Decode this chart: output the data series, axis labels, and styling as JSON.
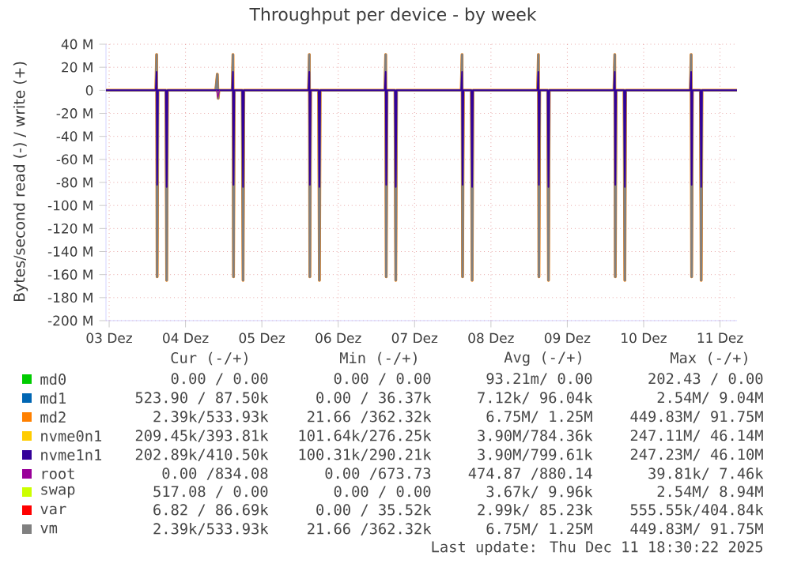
{
  "chart_data": {
    "type": "line",
    "title": "Throughput per device - by week",
    "ylabel": "Bytes/second read (-) / write (+)",
    "x": [
      "2025-12-03T11:00",
      "2025-12-04T02:40",
      "2025-12-04T02:55",
      "2025-12-04T03:05",
      "2025-12-04T03:20",
      "2025-12-04T05:50",
      "2025-12-04T06:05",
      "2025-12-04T06:20",
      "2025-12-04T21:30",
      "2025-12-04T22:00",
      "2025-12-04T22:15",
      "2025-12-04T22:30",
      "2025-12-05T02:40",
      "2025-12-05T02:55",
      "2025-12-05T03:05",
      "2025-12-05T03:20",
      "2025-12-05T05:50",
      "2025-12-05T06:05",
      "2025-12-05T06:20",
      "2025-12-06T02:40",
      "2025-12-06T02:55",
      "2025-12-06T03:05",
      "2025-12-06T03:20",
      "2025-12-06T05:50",
      "2025-12-06T06:05",
      "2025-12-06T06:20",
      "2025-12-07T02:40",
      "2025-12-07T02:55",
      "2025-12-07T03:05",
      "2025-12-07T03:20",
      "2025-12-07T05:50",
      "2025-12-07T06:05",
      "2025-12-07T06:20",
      "2025-12-08T02:40",
      "2025-12-08T02:55",
      "2025-12-08T03:05",
      "2025-12-08T03:20",
      "2025-12-08T05:50",
      "2025-12-08T06:05",
      "2025-12-08T06:20",
      "2025-12-09T02:40",
      "2025-12-09T02:55",
      "2025-12-09T03:05",
      "2025-12-09T03:20",
      "2025-12-09T05:50",
      "2025-12-09T06:05",
      "2025-12-09T06:20",
      "2025-12-10T02:40",
      "2025-12-10T02:55",
      "2025-12-10T03:05",
      "2025-12-10T03:20",
      "2025-12-10T05:50",
      "2025-12-10T06:05",
      "2025-12-10T06:20",
      "2025-12-11T02:40",
      "2025-12-11T02:55",
      "2025-12-11T03:05",
      "2025-12-11T03:20",
      "2025-12-11T05:50",
      "2025-12-11T06:05",
      "2025-12-11T06:20",
      "2025-12-11T17:20"
    ],
    "series": [
      {
        "name": "md0",
        "color": "#00cc00",
        "values": [
          null,
          null,
          null,
          null,
          null,
          null,
          null,
          null,
          null,
          null,
          null,
          null,
          null,
          null,
          null,
          null,
          null,
          null,
          null,
          null,
          null,
          null,
          null,
          null,
          null,
          null,
          null,
          null,
          null,
          null,
          null,
          null,
          null,
          null,
          null,
          null,
          null,
          null,
          null,
          null,
          null,
          null,
          null,
          null,
          null,
          null,
          null,
          null,
          null,
          null,
          null,
          null,
          null,
          null,
          null,
          null,
          null,
          null,
          null,
          null,
          null,
          null
        ]
      },
      {
        "name": "md1",
        "color": "#0066b3",
        "values": [
          null,
          null,
          null,
          null,
          null,
          null,
          null,
          null,
          null,
          null,
          null,
          null,
          null,
          null,
          null,
          null,
          null,
          null,
          null,
          null,
          null,
          null,
          null,
          null,
          null,
          null,
          null,
          null,
          null,
          null,
          null,
          null,
          null,
          null,
          null,
          null,
          null,
          null,
          null,
          null,
          null,
          null,
          null,
          null,
          null,
          null,
          null,
          null,
          null,
          null,
          null,
          null,
          null,
          null,
          null,
          null,
          null,
          null,
          null,
          null,
          null,
          null
        ]
      },
      {
        "name": "md2",
        "color": "#ff8000",
        "values": [
          0,
          0,
          31,
          -162,
          0,
          0,
          -165,
          0,
          0,
          14,
          -7,
          0,
          0,
          31,
          -162,
          0,
          0,
          -165,
          0,
          0,
          31,
          -162,
          0,
          0,
          -165,
          0,
          0,
          31,
          -162,
          0,
          0,
          -165,
          0,
          0,
          31,
          -162,
          0,
          0,
          -165,
          0,
          0,
          31,
          -162,
          0,
          0,
          -165,
          0,
          0,
          31,
          -162,
          0,
          0,
          -165,
          0,
          0,
          31,
          -162,
          0,
          0,
          -165,
          0,
          0
        ]
      },
      {
        "name": "nvme0n1",
        "color": "#ffcc00",
        "values": [
          null,
          null,
          null,
          null,
          null,
          null,
          null,
          null,
          null,
          null,
          null,
          null,
          null,
          null,
          null,
          null,
          null,
          null,
          null,
          null,
          null,
          null,
          null,
          null,
          null,
          null,
          null,
          null,
          null,
          null,
          null,
          null,
          null,
          null,
          null,
          null,
          null,
          null,
          null,
          null,
          null,
          null,
          null,
          null,
          null,
          null,
          null,
          null,
          null,
          null,
          null,
          null,
          null,
          null,
          null,
          null,
          null,
          null,
          null,
          null,
          null,
          null
        ]
      },
      {
        "name": "nvme1n1",
        "color": "#330099",
        "values": [
          0,
          0,
          16,
          -82,
          0,
          0,
          -84,
          0,
          0,
          0,
          0,
          0,
          0,
          16,
          -82,
          0,
          0,
          -84,
          0,
          0,
          16,
          -82,
          0,
          0,
          -84,
          0,
          0,
          16,
          -82,
          0,
          0,
          -84,
          0,
          0,
          16,
          -82,
          0,
          0,
          -84,
          0,
          0,
          16,
          -82,
          0,
          0,
          -84,
          0,
          0,
          16,
          -82,
          0,
          0,
          -84,
          0,
          0,
          16,
          -82,
          0,
          0,
          -84,
          0,
          0
        ]
      },
      {
        "name": "root",
        "color": "#990099",
        "x": [
          "2025-12-04T21:45",
          "2025-12-04T22:10",
          "2025-12-04T22:40"
        ],
        "values": [
          0,
          -6,
          0
        ]
      },
      {
        "name": "swap",
        "color": "#ccff00",
        "values": [
          null,
          null,
          null,
          null,
          null,
          null,
          null,
          null,
          null,
          null,
          null,
          null,
          null,
          null,
          null,
          null,
          null,
          null,
          null,
          null,
          null,
          null,
          null,
          null,
          null,
          null,
          null,
          null,
          null,
          null,
          null,
          null,
          null,
          null,
          null,
          null,
          null,
          null,
          null,
          null,
          null,
          null,
          null,
          null,
          null,
          null,
          null,
          null,
          null,
          null,
          null,
          null,
          null,
          null,
          null,
          null,
          null,
          null,
          null,
          null,
          null,
          null
        ]
      },
      {
        "name": "var",
        "color": "#ff0000",
        "values": [
          null,
          null,
          null,
          null,
          null,
          null,
          null,
          null,
          null,
          null,
          null,
          null,
          null,
          null,
          null,
          null,
          null,
          null,
          null,
          null,
          null,
          null,
          null,
          null,
          null,
          null,
          null,
          null,
          null,
          null,
          null,
          null,
          null,
          null,
          null,
          null,
          null,
          null,
          null,
          null,
          null,
          null,
          null,
          null,
          null,
          null,
          null,
          null,
          null,
          null,
          null,
          null,
          null,
          null,
          null,
          null,
          null,
          null,
          null,
          null,
          null,
          null
        ]
      },
      {
        "name": "vm",
        "color": "#808080",
        "values": [
          0,
          0,
          31,
          -162,
          0,
          0,
          -165,
          0,
          0,
          14,
          -7,
          0,
          0,
          31,
          -162,
          0,
          0,
          -165,
          0,
          0,
          31,
          -162,
          0,
          0,
          -165,
          0,
          0,
          31,
          -162,
          0,
          0,
          -165,
          0,
          0,
          31,
          -162,
          0,
          0,
          -165,
          0,
          0,
          31,
          -162,
          0,
          0,
          -165,
          0,
          0,
          31,
          -162,
          0,
          0,
          -165,
          0,
          0,
          31,
          -162,
          0,
          0,
          -165,
          0,
          0
        ]
      }
    ],
    "xlim": [
      "2025-12-03T11:00",
      "2025-12-11T17:20"
    ],
    "xticks": [
      {
        "value": "2025-12-03T12:00",
        "label": "03 Dez"
      },
      {
        "value": "2025-12-04T12:00",
        "label": "04 Dez"
      },
      {
        "value": "2025-12-05T12:00",
        "label": "05 Dez"
      },
      {
        "value": "2025-12-06T12:00",
        "label": "06 Dez"
      },
      {
        "value": "2025-12-07T12:00",
        "label": "07 Dez"
      },
      {
        "value": "2025-12-08T12:00",
        "label": "08 Dez"
      },
      {
        "value": "2025-12-09T12:00",
        "label": "09 Dez"
      },
      {
        "value": "2025-12-10T12:00",
        "label": "10 Dez"
      },
      {
        "value": "2025-12-11T12:00",
        "label": "11 Dez"
      }
    ],
    "ylim": [
      -200,
      40
    ],
    "yticks": [
      {
        "value": -200,
        "label": "-200 M"
      },
      {
        "value": -180,
        "label": "-180 M"
      },
      {
        "value": -160,
        "label": "-160 M"
      },
      {
        "value": -140,
        "label": "-140 M"
      },
      {
        "value": -120,
        "label": "-120 M"
      },
      {
        "value": -100,
        "label": "-100 M"
      },
      {
        "value": -80,
        "label": "-80 M"
      },
      {
        "value": -60,
        "label": "-60 M"
      },
      {
        "value": -40,
        "label": "-40 M"
      },
      {
        "value": -20,
        "label": "-20 M"
      },
      0,
      {
        "value": 20,
        "label": "20 M"
      },
      {
        "value": 40,
        "label": "40 M"
      }
    ],
    "grid": true,
    "legend": "bottom",
    "marker": "none",
    "line_style": "solid",
    "annotations": [
      "Cur (-/+)",
      "Min (-/+)",
      "Avg (-/+)",
      "Max (-/+)",
      "0.00 /  0.00",
      "0.00 /  0.00",
      "93.21m/  0.00",
      "202.43 /  0.00",
      "523.90 / 87.50k",
      "0.00 / 36.37k",
      "7.12k/ 96.04k",
      "2.54M/  9.04M",
      "2.39k/533.93k",
      "21.66 /362.32k",
      "6.75M/  1.25M",
      "449.83M/ 91.75M",
      "209.45k/393.81k",
      "101.64k/276.25k",
      "3.90M/784.36k",
      "247.11M/ 46.14M",
      "202.89k/410.50k",
      "100.31k/290.21k",
      "3.90M/799.61k",
      "247.23M/ 46.10M",
      "0.00 /834.08",
      "0.00 /673.73",
      "474.87 /880.14",
      "39.81k/  7.46k",
      "517.08 /  0.00",
      "0.00 /  0.00",
      "3.67k/  9.96k",
      "2.54M/  8.94M",
      "6.82 / 86.69k",
      "0.00 / 35.52k",
      "2.99k/ 85.23k",
      "555.55k/404.84k",
      "2.39k/533.93k",
      "21.66 /362.32k",
      "6.75M/  1.25M",
      "449.83M/ 91.75M",
      "Last update: Thu Dec 11 18:30:22 2025"
    ]
  }
}
